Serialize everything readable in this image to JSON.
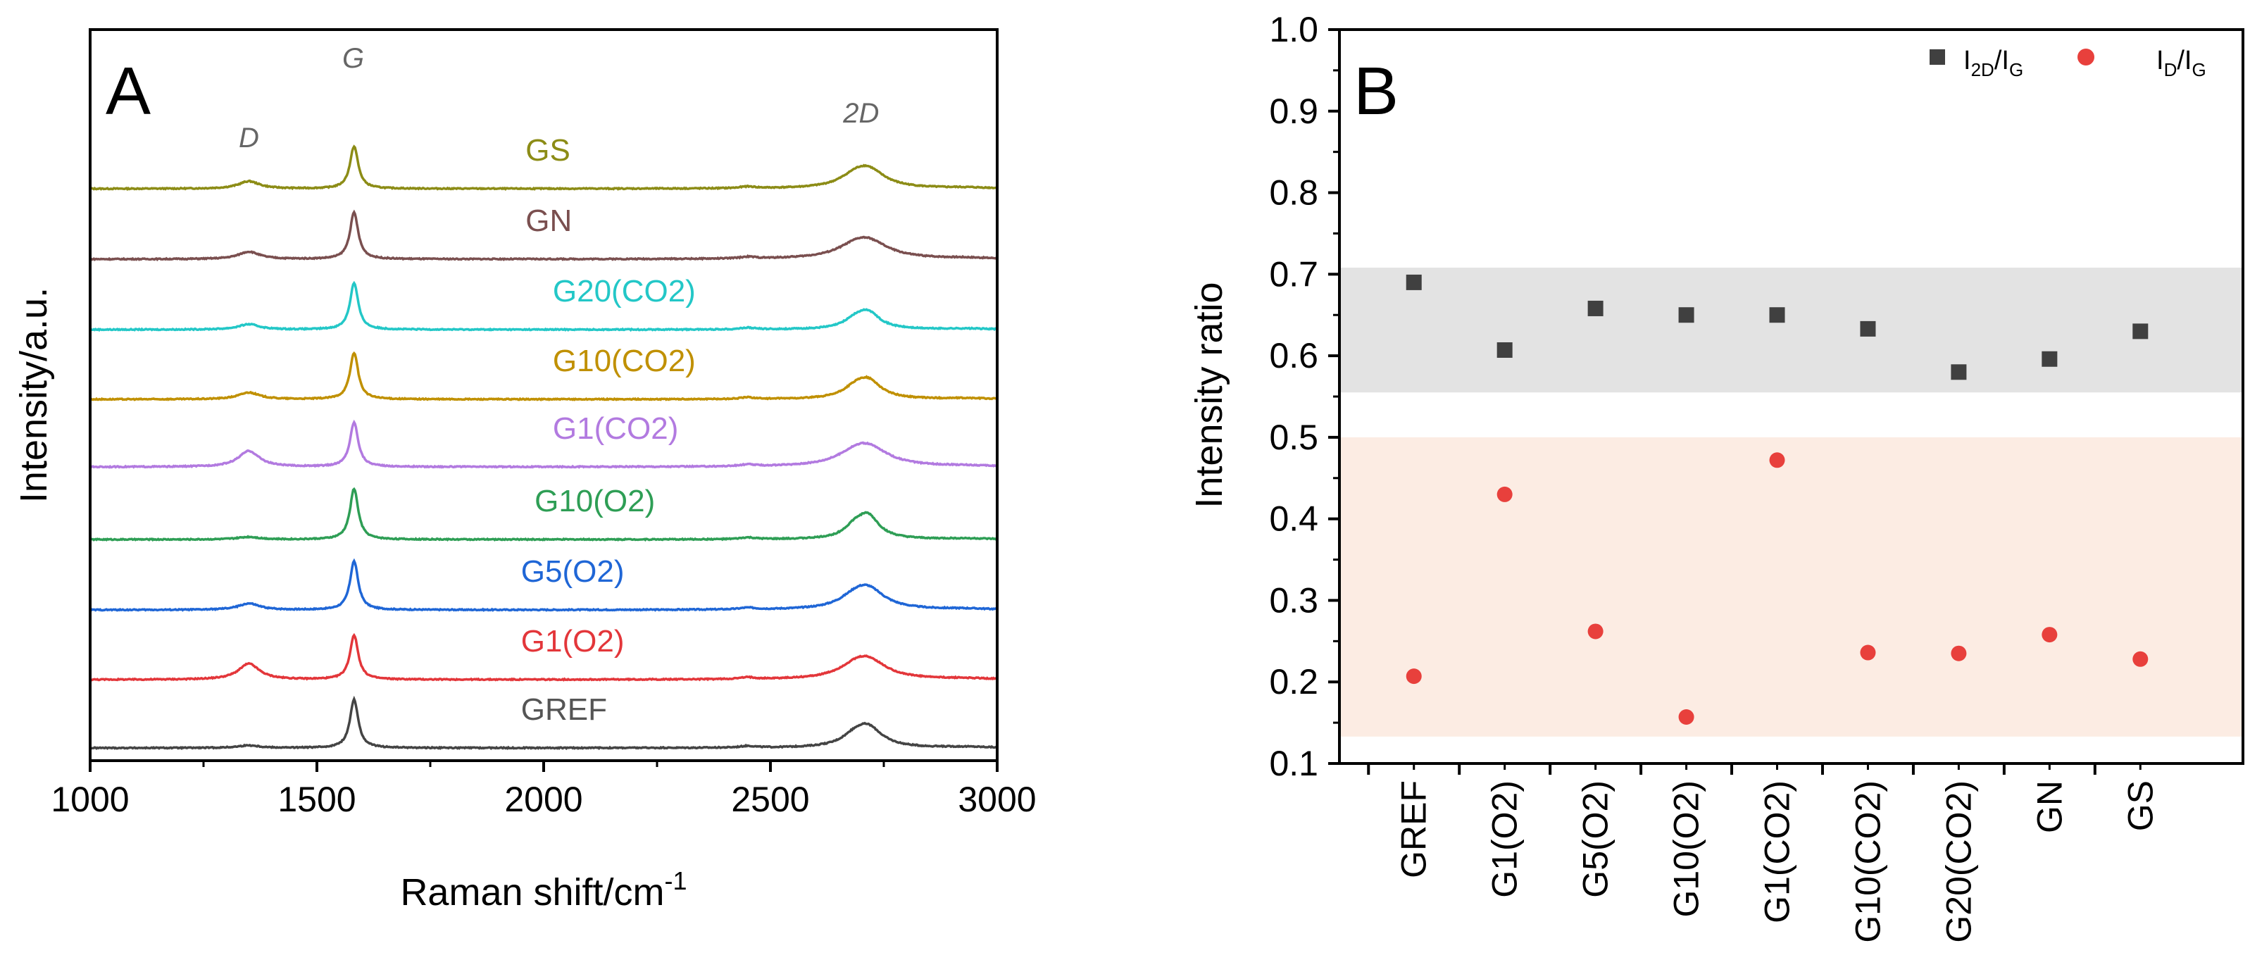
{
  "colors": {
    "axis": "#000000",
    "band_gray": "#e3e3e3",
    "band_peach": "#fcece3",
    "square_marker": "#404040",
    "circle_marker": "#e8403c"
  },
  "chart_data": [
    {
      "type": "line",
      "panel_label": "A",
      "xlabel": "Raman shift/cm",
      "xlabel_sup": "-1",
      "ylabel": "Intensity/a.u.",
      "xlim": [
        1000,
        3000
      ],
      "xticks": [
        "1000",
        "1500",
        "2000",
        "2500",
        "3000"
      ],
      "ytick_labels": false,
      "peak_labels": [
        {
          "text": "D",
          "x": 1350
        },
        {
          "text": "G",
          "x": 1580
        },
        {
          "text": "2D",
          "x": 2700
        }
      ],
      "series": [
        {
          "name": "GS",
          "color": "#8c8c16",
          "text_color": "#8c8c16",
          "D": 0.35,
          "G": 2.0,
          "D2": 1.2,
          "D2w": 45,
          "label_x": 1960
        },
        {
          "name": "GN",
          "color": "#7a4f4f",
          "text_color": "#7a4f4f",
          "D": 0.35,
          "G": 2.2,
          "D2": 1.1,
          "D2w": 55,
          "label_x": 1960
        },
        {
          "name": "G20(CO2)",
          "color": "#23c7c7",
          "text_color": "#23c7c7",
          "D": 0.25,
          "G": 2.2,
          "D2": 1.1,
          "D2w": 32,
          "label_x": 2020
        },
        {
          "name": "G10(CO2)",
          "color": "#c09000",
          "text_color": "#c09000",
          "D": 0.32,
          "G": 2.2,
          "D2": 1.2,
          "D2w": 35,
          "label_x": 2020
        },
        {
          "name": "G1(CO2)",
          "color": "#b27ae0",
          "text_color": "#b27ae0",
          "D": 0.75,
          "G": 2.1,
          "D2": 1.2,
          "D2w": 55,
          "label_x": 2020
        },
        {
          "name": "G10(O2)",
          "color": "#2e9e55",
          "text_color": "#2e9e55",
          "D": 0.12,
          "G": 2.4,
          "D2": 1.5,
          "D2w": 30,
          "label_x": 1980
        },
        {
          "name": "G5(O2)",
          "color": "#1f66d6",
          "text_color": "#1f66d6",
          "D": 0.3,
          "G": 2.3,
          "D2": 1.3,
          "D2w": 45,
          "label_x": 1950
        },
        {
          "name": "G1(O2)",
          "color": "#e3363a",
          "text_color": "#e3363a",
          "D": 0.75,
          "G": 2.1,
          "D2": 1.2,
          "D2w": 50,
          "label_x": 1950
        },
        {
          "name": "GREF",
          "color": "#444444",
          "text_color": "#555555",
          "D": 0.12,
          "G": 2.3,
          "D2": 1.3,
          "D2w": 38,
          "label_x": 1950
        }
      ]
    },
    {
      "type": "scatter",
      "panel_label": "B",
      "ylabel": "Intensity ratio",
      "ylim": [
        0.1,
        1.0
      ],
      "yticks": [
        "0.1",
        "0.2",
        "0.3",
        "0.4",
        "0.5",
        "0.6",
        "0.7",
        "0.8",
        "0.9",
        "1.0"
      ],
      "categories": [
        "GREF",
        "G1(O2)",
        "G5(O2)",
        "G10(O2)",
        "G1(CO2)",
        "G10(CO2)",
        "G20(CO2)",
        "GN",
        "GS"
      ],
      "bands": [
        {
          "y0": 0.555,
          "y1": 0.708,
          "color": "#e3e3e3"
        },
        {
          "y0": 0.133,
          "y1": 0.5,
          "color": "#fcece3"
        }
      ],
      "legend_position": "top-right",
      "series": [
        {
          "name": "I2D/IG",
          "label_main": "I",
          "label_sub": "2D",
          "label_slash": "/I",
          "label_sub2": "G",
          "marker": "square",
          "color": "#404040",
          "values": [
            0.69,
            0.607,
            0.658,
            0.65,
            0.65,
            0.633,
            0.58,
            0.596,
            0.63
          ]
        },
        {
          "name": "ID/IG",
          "label_main": "I",
          "label_sub": "D",
          "label_slash": "/I",
          "label_sub2": "G",
          "marker": "circle",
          "color": "#e8403c",
          "values": [
            0.207,
            0.43,
            0.262,
            0.157,
            0.472,
            0.236,
            0.235,
            0.258,
            0.228
          ]
        }
      ]
    }
  ]
}
